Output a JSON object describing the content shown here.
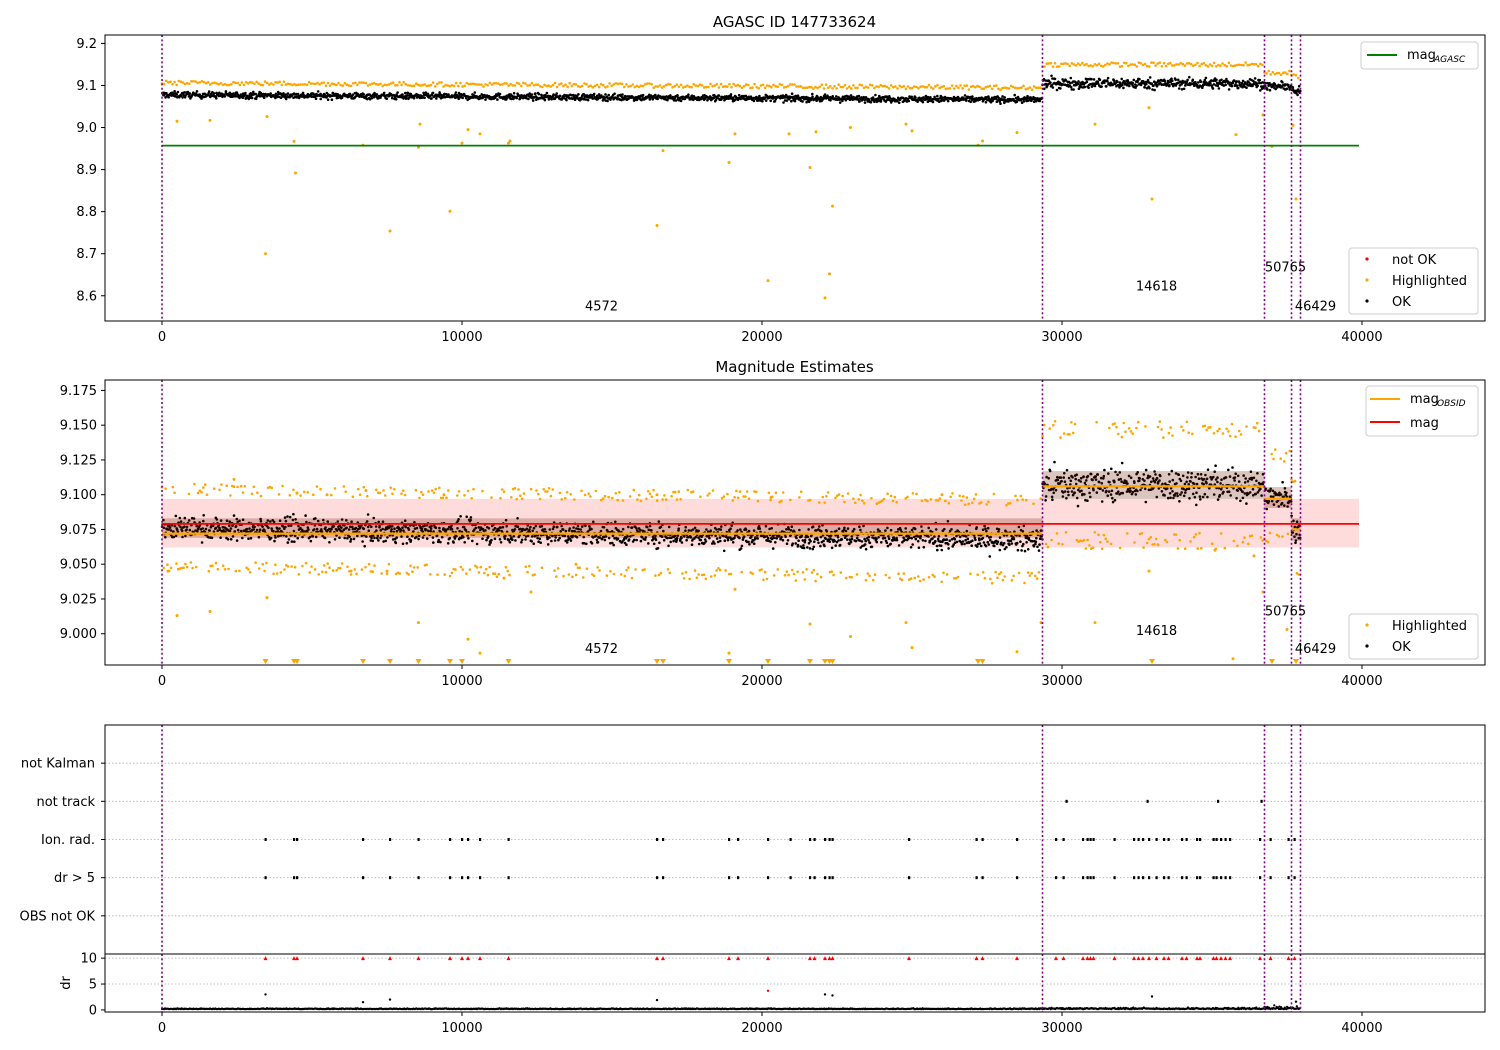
{
  "figure": {
    "title_top": "AGASC ID 147733624",
    "title_mid": "Magnitude Estimates"
  },
  "colors": {
    "ok": "#000000",
    "highlighted": "#ffa500",
    "not_ok": "#ff0000",
    "mag_agasc": "#008000",
    "mag": "#ff0000",
    "mag_obsid": "#ffa500",
    "obsid_boundary": "#800080",
    "band": "#ffc0c0"
  },
  "chart_data": [
    {
      "type": "scatter",
      "title": "AGASC ID 147733624",
      "xlim": [
        -1900,
        44100
      ],
      "ylim": [
        8.54,
        9.22
      ],
      "xticks": [
        0,
        10000,
        20000,
        30000,
        40000
      ],
      "yticks": [
        8.6,
        8.7,
        8.8,
        8.9,
        9.0,
        9.1,
        9.2
      ],
      "obsid_boundaries": [
        0,
        29350,
        36750,
        37650,
        37950
      ],
      "obsid_labels": [
        {
          "text": "4572",
          "x": 14650,
          "y": 8.565
        },
        {
          "text": "14618",
          "x": 33150,
          "y": 8.612
        },
        {
          "text": "50765",
          "x": 37450,
          "y": 8.658
        },
        {
          "text": "46429",
          "x": 38450,
          "y": 8.565
        }
      ],
      "series": [
        {
          "name": "OK",
          "style": "band",
          "segments": [
            {
              "x0": 0,
              "x1": 29350,
              "y_start": 9.078,
              "y_end": 9.066,
              "spread": 0.013
            },
            {
              "x0": 29350,
              "x1": 36750,
              "y_start": 9.105,
              "y_end": 9.105,
              "spread": 0.022
            },
            {
              "x0": 36750,
              "x1": 37650,
              "y_start": 9.098,
              "y_end": 9.098,
              "spread": 0.015
            },
            {
              "x0": 37650,
              "x1": 37950,
              "y_start": 9.085,
              "y_end": 9.085,
              "spread": 0.018
            }
          ]
        },
        {
          "name": "Highlighted",
          "points": [
            [
              500,
              9.015
            ],
            [
              1600,
              9.017
            ],
            [
              3450,
              8.7
            ],
            [
              3500,
              9.026
            ],
            [
              4400,
              8.967
            ],
            [
              4450,
              8.892
            ],
            [
              6700,
              8.958
            ],
            [
              7600,
              8.754
            ],
            [
              8550,
              8.953
            ],
            [
              8600,
              9.008
            ],
            [
              9600,
              8.801
            ],
            [
              10000,
              8.963
            ],
            [
              10200,
              8.995
            ],
            [
              10600,
              8.985
            ],
            [
              11550,
              8.963
            ],
            [
              11600,
              8.968
            ],
            [
              16500,
              8.767
            ],
            [
              16700,
              8.945
            ],
            [
              18900,
              8.917
            ],
            [
              19100,
              8.985
            ],
            [
              20200,
              8.636
            ],
            [
              20900,
              8.985
            ],
            [
              21600,
              8.905
            ],
            [
              21800,
              8.99
            ],
            [
              22100,
              8.595
            ],
            [
              22250,
              8.652
            ],
            [
              22350,
              8.813
            ],
            [
              22950,
              9.0
            ],
            [
              24800,
              9.008
            ],
            [
              25000,
              8.992
            ],
            [
              27200,
              8.958
            ],
            [
              27350,
              8.968
            ],
            [
              28500,
              8.988
            ],
            [
              31100,
              9.008
            ],
            [
              32900,
              9.047
            ],
            [
              33000,
              8.83
            ],
            [
              35800,
              8.983
            ],
            [
              36700,
              9.03
            ],
            [
              37000,
              8.955
            ],
            [
              37700,
              9.005
            ],
            [
              37800,
              8.83
            ]
          ]
        },
        {
          "name": "not OK",
          "points": []
        }
      ],
      "lines": [
        {
          "name": "mag_AGASC",
          "y": 8.957,
          "x0": 0,
          "x1": 39900
        }
      ],
      "legend_top": [
        "mag_AGASC"
      ],
      "legend_bottom": [
        "not OK",
        "Highlighted",
        "OK"
      ]
    },
    {
      "type": "scatter",
      "title": "Magnitude Estimates",
      "xlim": [
        -1900,
        44100
      ],
      "ylim": [
        8.9775,
        9.1825
      ],
      "xticks": [
        0,
        10000,
        20000,
        30000,
        40000
      ],
      "yticks": [
        9.0,
        9.025,
        9.05,
        9.075,
        9.1,
        9.125,
        9.15,
        9.175
      ],
      "obsid_boundaries": [
        0,
        29350,
        36750,
        37650,
        37950
      ],
      "obsid_labels": [
        {
          "text": "4572",
          "x": 14650,
          "y": 8.986
        },
        {
          "text": "14618",
          "x": 33150,
          "y": 8.999
        },
        {
          "text": "50765",
          "x": 37450,
          "y": 9.013
        },
        {
          "text": "46429",
          "x": 38450,
          "y": 8.986
        }
      ],
      "series": [
        {
          "name": "OK",
          "style": "band",
          "segments": [
            {
              "x0": 0,
              "x1": 29350,
              "y_start": 9.076,
              "y_end": 9.068,
              "spread": 0.014
            },
            {
              "x0": 29350,
              "x1": 36750,
              "y_start": 9.107,
              "y_end": 9.107,
              "spread": 0.02
            },
            {
              "x0": 36750,
              "x1": 37650,
              "y_start": 9.098,
              "y_end": 9.098,
              "spread": 0.015
            },
            {
              "x0": 37650,
              "x1": 37950,
              "y_start": 9.075,
              "y_end": 9.075,
              "spread": 0.016
            }
          ]
        },
        {
          "name": "Highlighted",
          "points": [
            [
              200,
              9.045
            ],
            [
              500,
              9.013
            ],
            [
              1600,
              9.016
            ],
            [
              2400,
              9.111
            ],
            [
              3500,
              9.026
            ],
            [
              4500,
              9.101
            ],
            [
              5500,
              9.1
            ],
            [
              6300,
              9.045
            ],
            [
              6800,
              9.103
            ],
            [
              7500,
              9.045
            ],
            [
              8550,
              9.008
            ],
            [
              9400,
              9.1
            ],
            [
              10200,
              8.996
            ],
            [
              10600,
              8.986
            ],
            [
              11400,
              9.04
            ],
            [
              12300,
              9.03
            ],
            [
              13800,
              9.05
            ],
            [
              16500,
              9.1
            ],
            [
              18900,
              8.986
            ],
            [
              19100,
              9.032
            ],
            [
              20300,
              9.098
            ],
            [
              21600,
              9.007
            ],
            [
              22950,
              8.998
            ],
            [
              24800,
              9.008
            ],
            [
              25000,
              8.99
            ],
            [
              26000,
              9.1
            ],
            [
              28500,
              8.987
            ],
            [
              29300,
              9.008
            ],
            [
              31100,
              9.008
            ],
            [
              32900,
              9.045
            ],
            [
              33200,
              9.064
            ],
            [
              35100,
              9.06
            ],
            [
              35700,
              8.982
            ],
            [
              36400,
              9.056
            ],
            [
              36700,
              9.03
            ],
            [
              37500,
              9.003
            ]
          ]
        },
        {
          "name": "Highlighted (below axis)",
          "marker": "triangle-down",
          "x_values": [
            3450,
            4400,
            4500,
            6700,
            7600,
            8550,
            9600,
            10000,
            11550,
            16500,
            16700,
            18900,
            20200,
            21600,
            22100,
            22250,
            22350,
            27200,
            27350,
            33000,
            37000,
            37800
          ]
        }
      ],
      "lines": [
        {
          "name": "mag",
          "y": 9.079,
          "x0": 0,
          "x1": 39900,
          "band": [
            9.062,
            9.097
          ]
        },
        {
          "name": "mag_OBSID",
          "segments": [
            {
              "x0": 0,
              "x1": 29350,
              "y": 9.072
            },
            {
              "x0": 29350,
              "x1": 36750,
              "y": 9.106
            },
            {
              "x0": 36750,
              "x1": 37650,
              "y": 9.097
            },
            {
              "x0": 37650,
              "x1": 37950,
              "y": 9.075
            }
          ]
        }
      ],
      "legend_top": [
        "mag_OBSID",
        "mag"
      ],
      "legend_bottom": [
        "Highlighted",
        "OK"
      ]
    },
    {
      "type": "scatter",
      "title": "",
      "xlim": [
        -1900,
        44100
      ],
      "ylim": [
        0,
        6
      ],
      "categories": [
        "not Kalman",
        "not track",
        "Ion. rad.",
        "dr > 5",
        "OBS not OK"
      ],
      "obsid_boundaries": [
        0,
        29350,
        36750,
        37650,
        37950
      ],
      "flag_points": {
        "not Kalman": [],
        "not track": [
          30150,
          32850,
          35200,
          36650
        ],
        "Ion. rad.": [
          3450,
          4400,
          4500,
          6700,
          7600,
          8550,
          9600,
          10000,
          10200,
          10600,
          11550,
          16500,
          16700,
          18900,
          19200,
          20200,
          20950,
          21600,
          21750,
          22100,
          22250,
          22350,
          24900,
          27150,
          27350,
          28500,
          29800,
          30050,
          30700,
          30850,
          30950,
          31050,
          31750,
          32400,
          32550,
          32700,
          32900,
          33150,
          33400,
          33550,
          34000,
          34150,
          34500,
          34600,
          35050,
          35150,
          35300,
          35450,
          35600,
          36600,
          36950,
          37550,
          37750
        ],
        "dr > 5": [
          3450,
          4400,
          4500,
          6700,
          7600,
          8550,
          9600,
          10000,
          10200,
          10600,
          11550,
          16500,
          16700,
          18900,
          19200,
          20200,
          20950,
          21600,
          21750,
          22100,
          22250,
          22350,
          24900,
          27150,
          27350,
          28500,
          29800,
          30050,
          30700,
          30850,
          30950,
          31050,
          31750,
          32400,
          32550,
          32700,
          32900,
          33150,
          33400,
          33550,
          34000,
          34150,
          34500,
          34600,
          35050,
          35150,
          35300,
          35450,
          35600,
          36600,
          36950,
          37550,
          37750
        ],
        "OBS not OK": []
      }
    },
    {
      "type": "scatter",
      "title": "",
      "xlabel": "",
      "ylabel": "dr",
      "xlim": [
        -1900,
        44100
      ],
      "ylim": [
        -0.4,
        10.8
      ],
      "xticks": [
        0,
        10000,
        20000,
        30000,
        40000
      ],
      "yticks": [
        0,
        5,
        10
      ],
      "obsid_boundaries": [
        0,
        29350,
        36750,
        37650,
        37950
      ],
      "series": [
        {
          "name": "OK",
          "style": "baseline",
          "level": 0.15,
          "segments": [
            {
              "x0": 0,
              "x1": 29350,
              "spread": 0.25
            },
            {
              "x0": 29350,
              "x1": 36750,
              "spread": 0.45
            },
            {
              "x0": 36750,
              "x1": 37950,
              "spread": 0.9
            }
          ],
          "points": [
            [
              3450,
              3.0
            ],
            [
              6700,
              1.5
            ],
            [
              7600,
              2.0
            ],
            [
              16500,
              1.9
            ],
            [
              20200,
              3.7
            ],
            [
              22100,
              3.0
            ],
            [
              22350,
              2.8
            ],
            [
              33000,
              2.6
            ],
            [
              37800,
              1.6
            ]
          ]
        },
        {
          "name": "Clipped (dr ≥ 10)",
          "marker": "triangle-up",
          "x_values": [
            3450,
            4400,
            4500,
            6700,
            7600,
            8550,
            9600,
            10000,
            10200,
            10600,
            11550,
            16500,
            16700,
            18900,
            19200,
            20200,
            21600,
            21750,
            22100,
            22250,
            22350,
            24900,
            27150,
            27350,
            28500,
            29800,
            30050,
            30700,
            30850,
            30950,
            31050,
            31750,
            32400,
            32550,
            32700,
            32900,
            33150,
            33400,
            33550,
            34000,
            34150,
            34500,
            34600,
            35050,
            35150,
            35300,
            35450,
            35600,
            36600,
            36950,
            37550,
            37750
          ]
        }
      ]
    }
  ],
  "legends": {
    "top": {
      "agasc_prefix": "mag",
      "agasc_sub": "AGASC"
    },
    "top_bottom": [
      "not OK",
      "Highlighted",
      "OK"
    ],
    "mid": {
      "obsid_prefix": "mag",
      "obsid_sub": "OBSID",
      "mag": "mag"
    },
    "mid_bottom": [
      "Highlighted",
      "OK"
    ]
  }
}
